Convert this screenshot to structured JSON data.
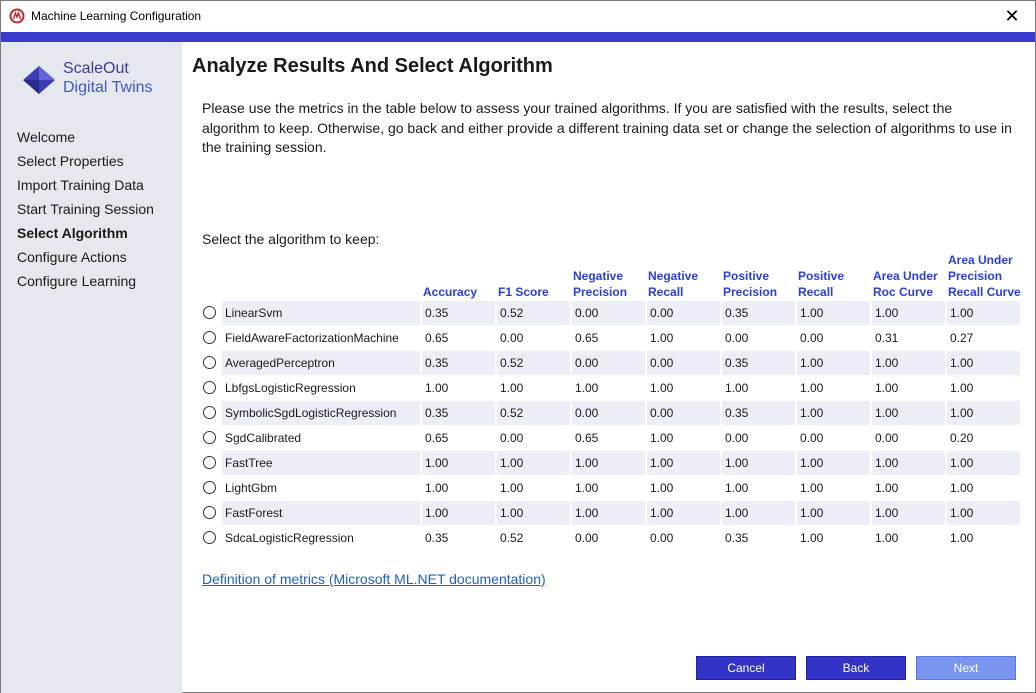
{
  "window": {
    "title": "Machine Learning Configuration",
    "close_glyph": "✕",
    "accent_color": "#3b3bd0"
  },
  "sidebar": {
    "logo": {
      "line1": "ScaleOut",
      "line2": "Digital Twins"
    },
    "items": [
      {
        "label": "Welcome",
        "active": false
      },
      {
        "label": "Select Properties",
        "active": false
      },
      {
        "label": "Import Training Data",
        "active": false
      },
      {
        "label": "Start Training Session",
        "active": false
      },
      {
        "label": "Select Algorithm",
        "active": true
      },
      {
        "label": "Configure Actions",
        "active": false
      },
      {
        "label": "Configure Learning",
        "active": false
      }
    ]
  },
  "main": {
    "title": "Analyze Results And Select Algorithm",
    "intro": "Please use the metrics in the table below to assess your trained algorithms. If you are satisfied with the results, select the algorithm to keep. Otherwise, go back and either provide a different training data set or change the selection of algorithms to use in the training session.",
    "select_label": "Select the algorithm to keep:",
    "table": {
      "headers": [
        [
          "Accuracy"
        ],
        [
          "F1 Score"
        ],
        [
          "Negative",
          "Precision"
        ],
        [
          "Negative",
          "Recall"
        ],
        [
          "Positive",
          "Precision"
        ],
        [
          "Positive",
          "Recall"
        ],
        [
          "Area Under",
          "Roc Curve"
        ],
        [
          "Area Under",
          "Precision",
          "Recall Curve"
        ]
      ],
      "rows": [
        {
          "name": "LinearSvm",
          "values": [
            "0.35",
            "0.52",
            "0.00",
            "0.00",
            "0.35",
            "1.00",
            "1.00",
            "1.00"
          ]
        },
        {
          "name": "FieldAwareFactorizationMachine",
          "values": [
            "0.65",
            "0.00",
            "0.65",
            "1.00",
            "0.00",
            "0.00",
            "0.31",
            "0.27"
          ]
        },
        {
          "name": "AveragedPerceptron",
          "values": [
            "0.35",
            "0.52",
            "0.00",
            "0.00",
            "0.35",
            "1.00",
            "1.00",
            "1.00"
          ]
        },
        {
          "name": "LbfgsLogisticRegression",
          "values": [
            "1.00",
            "1.00",
            "1.00",
            "1.00",
            "1.00",
            "1.00",
            "1.00",
            "1.00"
          ]
        },
        {
          "name": "SymbolicSgdLogisticRegression",
          "values": [
            "0.35",
            "0.52",
            "0.00",
            "0.00",
            "0.35",
            "1.00",
            "1.00",
            "1.00"
          ]
        },
        {
          "name": "SgdCalibrated",
          "values": [
            "0.65",
            "0.00",
            "0.65",
            "1.00",
            "0.00",
            "0.00",
            "0.00",
            "0.20"
          ]
        },
        {
          "name": "FastTree",
          "values": [
            "1.00",
            "1.00",
            "1.00",
            "1.00",
            "1.00",
            "1.00",
            "1.00",
            "1.00"
          ]
        },
        {
          "name": "LightGbm",
          "values": [
            "1.00",
            "1.00",
            "1.00",
            "1.00",
            "1.00",
            "1.00",
            "1.00",
            "1.00"
          ]
        },
        {
          "name": "FastForest",
          "values": [
            "1.00",
            "1.00",
            "1.00",
            "1.00",
            "1.00",
            "1.00",
            "1.00",
            "1.00"
          ]
        },
        {
          "name": "SdcaLogisticRegression",
          "values": [
            "0.35",
            "0.52",
            "0.00",
            "0.00",
            "0.35",
            "1.00",
            "1.00",
            "1.00"
          ]
        }
      ]
    },
    "doc_link": "Definition of metrics (Microsoft ML.NET documentation)"
  },
  "buttons": {
    "cancel": "Cancel",
    "back": "Back",
    "next": "Next"
  }
}
